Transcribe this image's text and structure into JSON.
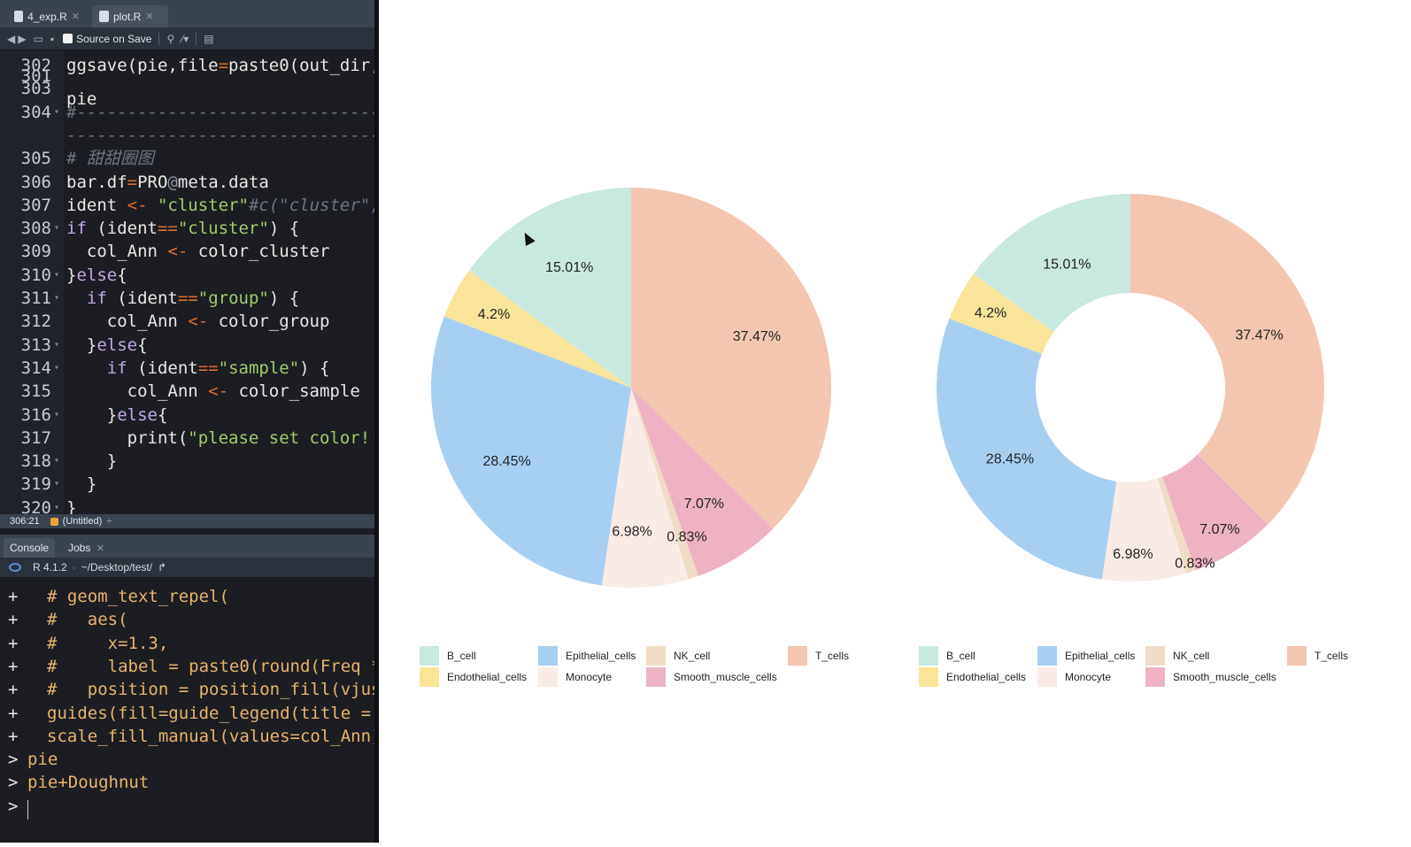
{
  "editor": {
    "tabs": [
      {
        "label": "4_exp.R"
      },
      {
        "label": "plot.R"
      }
    ],
    "toolbar": {
      "source_on_save": "Source on Save"
    },
    "lines": [
      {
        "n": "302",
        "segs": [
          {
            "t": "ggsave(pie,file",
            "c": ""
          },
          {
            "t": "=",
            "c": "t-op"
          },
          {
            "t": "paste0(out_dir,",
            "c": ""
          },
          {
            "t": "'",
            "c": "t-st"
          }
        ]
      },
      {
        "n": "303",
        "segs": []
      },
      {
        "n": "304",
        "fold": true,
        "segs": [
          {
            "t": "#-------------------------------",
            "c": "t-cm"
          }
        ]
      },
      {
        "n": "",
        "segs": [
          {
            "t": "--------------------------------",
            "c": "t-cm"
          }
        ]
      },
      {
        "n": "305",
        "segs": [
          {
            "t": "# 甜甜圈图",
            "c": "t-cm"
          }
        ]
      },
      {
        "n": "306",
        "segs": [
          {
            "t": "bar.df",
            "c": ""
          },
          {
            "t": "=",
            "c": "t-op"
          },
          {
            "t": "PRO",
            "c": ""
          },
          {
            "t": "@",
            "c": "t-at"
          },
          {
            "t": "meta.data",
            "c": ""
          }
        ]
      },
      {
        "n": "307",
        "segs": [
          {
            "t": "ident ",
            "c": ""
          },
          {
            "t": "<-",
            "c": "t-op"
          },
          {
            "t": " ",
            "c": ""
          },
          {
            "t": "\"cluster\"",
            "c": "t-st"
          },
          {
            "t": "#c(\"cluster\",",
            "c": "t-cm"
          }
        ]
      },
      {
        "n": "308",
        "fold": true,
        "segs": [
          {
            "t": "if",
            "c": "t-kw"
          },
          {
            "t": " (ident",
            "c": ""
          },
          {
            "t": "==",
            "c": "t-op"
          },
          {
            "t": "\"cluster\"",
            "c": "t-st"
          },
          {
            "t": ") {",
            "c": ""
          }
        ]
      },
      {
        "n": "309",
        "segs": [
          {
            "t": "  col_Ann ",
            "c": ""
          },
          {
            "t": "<-",
            "c": "t-op"
          },
          {
            "t": " color_cluster",
            "c": ""
          }
        ]
      },
      {
        "n": "310",
        "fold": true,
        "segs": [
          {
            "t": "}",
            "c": ""
          },
          {
            "t": "else",
            "c": "t-kw"
          },
          {
            "t": "{",
            "c": ""
          }
        ]
      },
      {
        "n": "311",
        "fold": true,
        "segs": [
          {
            "t": "  ",
            "c": ""
          },
          {
            "t": "if",
            "c": "t-kw"
          },
          {
            "t": " (ident",
            "c": ""
          },
          {
            "t": "==",
            "c": "t-op"
          },
          {
            "t": "\"group\"",
            "c": "t-st"
          },
          {
            "t": ") {",
            "c": ""
          }
        ]
      },
      {
        "n": "312",
        "segs": [
          {
            "t": "    col_Ann ",
            "c": ""
          },
          {
            "t": "<-",
            "c": "t-op"
          },
          {
            "t": " color_group",
            "c": ""
          }
        ]
      },
      {
        "n": "313",
        "fold": true,
        "segs": [
          {
            "t": "  }",
            "c": ""
          },
          {
            "t": "else",
            "c": "t-kw"
          },
          {
            "t": "{",
            "c": ""
          }
        ]
      },
      {
        "n": "314",
        "fold": true,
        "segs": [
          {
            "t": "    ",
            "c": ""
          },
          {
            "t": "if",
            "c": "t-kw"
          },
          {
            "t": " (ident",
            "c": ""
          },
          {
            "t": "==",
            "c": "t-op"
          },
          {
            "t": "\"sample\"",
            "c": "t-st"
          },
          {
            "t": ") {",
            "c": ""
          }
        ]
      },
      {
        "n": "315",
        "segs": [
          {
            "t": "      col_Ann ",
            "c": ""
          },
          {
            "t": "<-",
            "c": "t-op"
          },
          {
            "t": " color_sample",
            "c": ""
          }
        ]
      },
      {
        "n": "316",
        "fold": true,
        "segs": [
          {
            "t": "    }",
            "c": ""
          },
          {
            "t": "else",
            "c": "t-kw"
          },
          {
            "t": "{",
            "c": ""
          }
        ]
      },
      {
        "n": "317",
        "segs": [
          {
            "t": "      print(",
            "c": ""
          },
          {
            "t": "\"please set color!!\"",
            "c": "t-st"
          }
        ]
      },
      {
        "n": "318",
        "fold": true,
        "segs": [
          {
            "t": "    }",
            "c": ""
          }
        ]
      },
      {
        "n": "319",
        "fold": true,
        "segs": [
          {
            "t": "  }",
            "c": ""
          }
        ]
      },
      {
        "n": "320",
        "fold": true,
        "segs": [
          {
            "t": "}",
            "c": ""
          }
        ]
      }
    ],
    "status": {
      "position": "306:21",
      "scope": "(Untitled)"
    }
  },
  "console": {
    "tabs": [
      {
        "label": "Console"
      },
      {
        "label": "Jobs"
      }
    ],
    "r_version": "R 4.1.2",
    "path": "~/Desktop/test/",
    "lines": [
      {
        "p": "+",
        "t": "# geom_text_repel("
      },
      {
        "p": "+",
        "t": "#   aes("
      },
      {
        "p": "+",
        "t": "#     x=1.3,"
      },
      {
        "p": "+",
        "t": "#     label = paste0(round(Freq *"
      },
      {
        "p": "+",
        "t": "#   position = position_fill(vjust"
      },
      {
        "p": "+",
        "t": "guides(fill=guide_legend(title = '"
      },
      {
        "p": "+",
        "t": "scale_fill_manual(values=col_Ann)"
      },
      {
        "p": ">",
        "t": "pie"
      },
      {
        "p": ">",
        "t": "pie+Doughnut"
      },
      {
        "p": ">",
        "t": ""
      }
    ]
  },
  "chart_data": [
    {
      "type": "pie",
      "categories": [
        "T_cells",
        "Smooth_muscle_cells",
        "NK_cell",
        "Monocyte",
        "Epithelial_cells",
        "Endothelial_cells",
        "B_cell"
      ],
      "values": [
        37.47,
        7.07,
        0.83,
        6.98,
        28.45,
        4.2,
        15.01
      ],
      "labels": [
        "37.47%",
        "7.07%",
        "0.83%",
        "6.98%",
        "28.45%",
        "4.2%",
        "15.01%"
      ],
      "colors": [
        "#f4c6b2",
        "#eeb2c3",
        "#efdcc6",
        "#f9ebe5",
        "#a7cff2",
        "#f9e59a",
        "#c9e8df"
      ]
    },
    {
      "type": "pie",
      "subtype": "doughnut",
      "categories": [
        "T_cells",
        "Smooth_muscle_cells",
        "NK_cell",
        "Monocyte",
        "Epithelial_cells",
        "Endothelial_cells",
        "B_cell"
      ],
      "values": [
        37.47,
        7.07,
        0.83,
        6.98,
        28.45,
        4.2,
        15.01
      ],
      "labels": [
        "37.47%",
        "7.07%",
        "0.83%",
        "6.98%",
        "28.45%",
        "4.2%",
        "15.01%"
      ],
      "colors": [
        "#f4c6b2",
        "#eeb2c3",
        "#efdcc6",
        "#f9ebe5",
        "#a7cff2",
        "#f9e59a",
        "#c9e8df"
      ]
    }
  ],
  "legend": {
    "items": [
      {
        "label": "B_cell",
        "color": "#c9e8df"
      },
      {
        "label": "Epithelial_cells",
        "color": "#a7cff2"
      },
      {
        "label": "NK_cell",
        "color": "#efdcc6"
      },
      {
        "label": "T_cells",
        "color": "#f4c6b2"
      },
      {
        "label": "Endothelial_cells",
        "color": "#f9e59a"
      },
      {
        "label": "Monocyte",
        "color": "#f9ebe5"
      },
      {
        "label": "Smooth_muscle_cells",
        "color": "#eeb2c3"
      }
    ]
  }
}
